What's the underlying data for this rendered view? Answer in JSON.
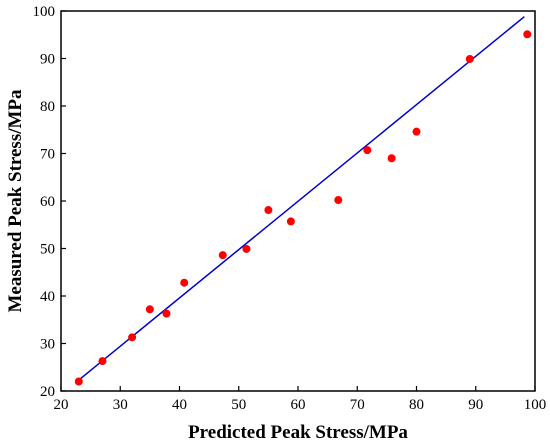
{
  "chart_data": {
    "type": "scatter",
    "xlabel": "Predicted Peak Stress/MPa",
    "ylabel": "Measured Peak Stress/MPa",
    "xlim": [
      20,
      100
    ],
    "ylim": [
      20,
      100
    ],
    "x_ticks": [
      "20",
      "30",
      "40",
      "50",
      "60",
      "70",
      "80",
      "90",
      "100"
    ],
    "y_ticks": [
      "20",
      "30",
      "40",
      "50",
      "60",
      "70",
      "80",
      "90",
      "100"
    ],
    "grid": false,
    "legend": "none",
    "series": [
      {
        "type": "scatter",
        "color": "#ff0000",
        "points": [
          {
            "x": 23.0,
            "y": 22.0
          },
          {
            "x": 27.0,
            "y": 26.3
          },
          {
            "x": 32.0,
            "y": 31.3
          },
          {
            "x": 35.0,
            "y": 37.2
          },
          {
            "x": 37.8,
            "y": 36.3
          },
          {
            "x": 40.8,
            "y": 42.8
          },
          {
            "x": 47.3,
            "y": 48.6
          },
          {
            "x": 51.3,
            "y": 49.9
          },
          {
            "x": 55.0,
            "y": 58.1
          },
          {
            "x": 58.8,
            "y": 55.7
          },
          {
            "x": 66.8,
            "y": 60.2
          },
          {
            "x": 71.7,
            "y": 70.7
          },
          {
            "x": 75.8,
            "y": 69.0
          },
          {
            "x": 80.0,
            "y": 74.6
          },
          {
            "x": 89.0,
            "y": 89.9
          },
          {
            "x": 98.7,
            "y": 95.1
          }
        ]
      },
      {
        "type": "line",
        "color": "#0000cc",
        "points": [
          {
            "x": 23.0,
            "y": 22.3
          },
          {
            "x": 98.2,
            "y": 98.8
          }
        ]
      }
    ]
  }
}
